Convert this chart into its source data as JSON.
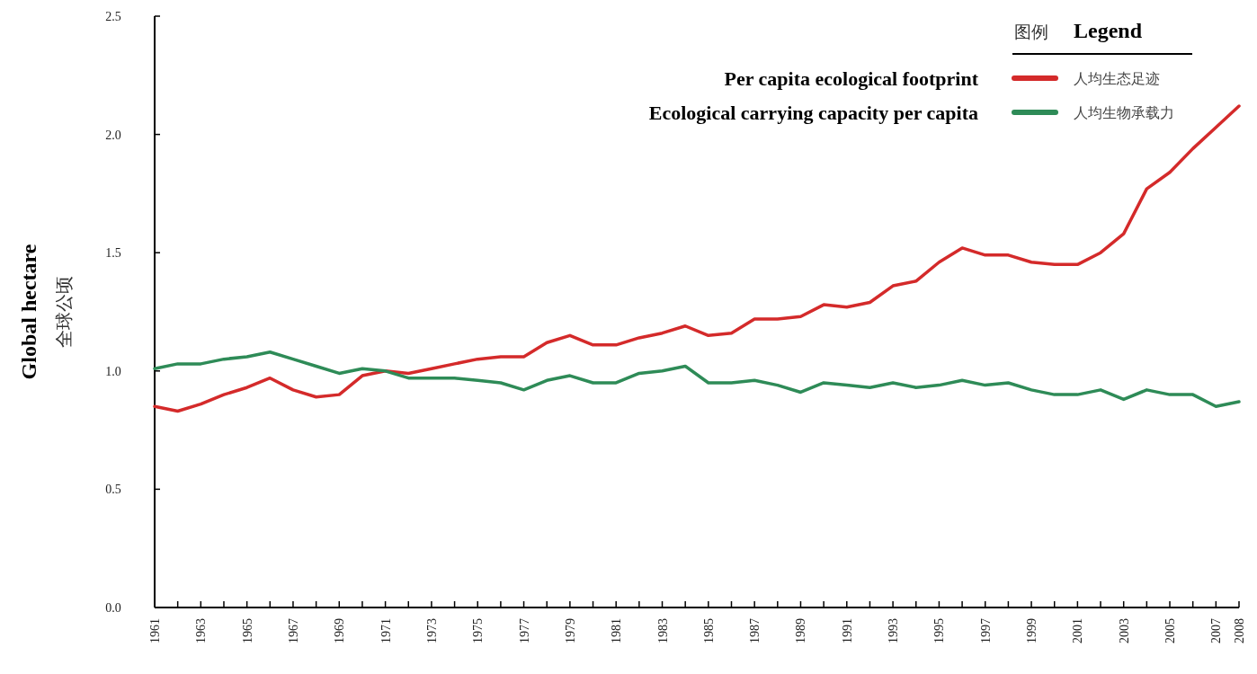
{
  "chart_data": {
    "type": "line",
    "ylabel": "Global hectare\n全球公顷",
    "legend_title": "图例 Legend",
    "legend": "top right",
    "grid": false,
    "marker": "none",
    "line_style": "solid",
    "annotations": [
      "Per capita ecological footprint",
      "Ecological carrying capacity per capita"
    ],
    "x": [
      1961,
      1962,
      1963,
      1964,
      1965,
      1966,
      1967,
      1968,
      1969,
      1970,
      1971,
      1972,
      1973,
      1974,
      1975,
      1976,
      1977,
      1978,
      1979,
      1980,
      1981,
      1982,
      1983,
      1984,
      1985,
      1986,
      1987,
      1988,
      1989,
      1990,
      1991,
      1992,
      1993,
      1994,
      1995,
      1996,
      1997,
      1998,
      1999,
      2000,
      2001,
      2002,
      2003,
      2004,
      2005,
      2006,
      2007,
      2008
    ],
    "xlim": [
      1961,
      2008
    ],
    "xticks": [
      1961,
      {
        "value": 1962,
        "label": null
      },
      1963,
      {
        "value": 1964,
        "label": null
      },
      1965,
      {
        "value": 1966,
        "label": null
      },
      1967,
      {
        "value": 1968,
        "label": null
      },
      1969,
      {
        "value": 1970,
        "label": null
      },
      1971,
      {
        "value": 1972,
        "label": null
      },
      1973,
      {
        "value": 1974,
        "label": null
      },
      1975,
      {
        "value": 1976,
        "label": null
      },
      1977,
      {
        "value": 1978,
        "label": null
      },
      1979,
      {
        "value": 1980,
        "label": null
      },
      1981,
      {
        "value": 1982,
        "label": null
      },
      1983,
      {
        "value": 1984,
        "label": null
      },
      1985,
      {
        "value": 1986,
        "label": null
      },
      1987,
      {
        "value": 1988,
        "label": null
      },
      1989,
      {
        "value": 1990,
        "label": null
      },
      1991,
      {
        "value": 1992,
        "label": null
      },
      1993,
      {
        "value": 1994,
        "label": null
      },
      1995,
      {
        "value": 1996,
        "label": null
      },
      1997,
      {
        "value": 1998,
        "label": null
      },
      1999,
      {
        "value": 2000,
        "label": null
      },
      2001,
      {
        "value": 2002,
        "label": null
      },
      2003,
      {
        "value": 2004,
        "label": null
      },
      2005,
      {
        "value": 2006,
        "label": null
      },
      2007,
      2008
    ],
    "ylim": [
      0,
      2.5
    ],
    "yticks": [
      {
        "value": 0,
        "label": "0.0"
      },
      {
        "value": 0.5,
        "label": "0.5"
      },
      {
        "value": 1,
        "label": "1.0"
      },
      {
        "value": 1.5,
        "label": "1.5"
      },
      {
        "value": 2,
        "label": "2.0"
      },
      {
        "value": 2.5,
        "label": "2.5"
      }
    ],
    "series": [
      {
        "name": "人均生态足迹",
        "color": "#d42a2a",
        "values": [
          0.85,
          0.83,
          0.86,
          0.9,
          0.93,
          0.97,
          0.92,
          0.89,
          0.9,
          0.98,
          1.0,
          0.99,
          1.01,
          1.03,
          1.05,
          1.06,
          1.06,
          1.12,
          1.15,
          1.11,
          1.11,
          1.14,
          1.16,
          1.19,
          1.15,
          1.16,
          1.22,
          1.22,
          1.23,
          1.28,
          1.27,
          1.29,
          1.36,
          1.38,
          1.46,
          1.52,
          1.49,
          1.49,
          1.46,
          1.45,
          1.45,
          1.5,
          1.58,
          1.77,
          1.84,
          1.94,
          2.03,
          2.12
        ]
      },
      {
        "name": "人均生物承载力",
        "color": "#2e8b57",
        "values": [
          1.01,
          1.03,
          1.03,
          1.05,
          1.06,
          1.08,
          1.05,
          1.02,
          0.99,
          1.01,
          1.0,
          0.97,
          0.97,
          0.97,
          0.96,
          0.95,
          0.92,
          0.96,
          0.98,
          0.95,
          0.95,
          0.99,
          1.0,
          1.02,
          0.95,
          0.95,
          0.96,
          0.94,
          0.91,
          0.95,
          0.94,
          0.93,
          0.95,
          0.93,
          0.94,
          0.96,
          0.94,
          0.95,
          0.92,
          0.9,
          0.9,
          0.92,
          0.88,
          0.92,
          0.9,
          0.9,
          0.85,
          0.87
        ]
      }
    ]
  }
}
